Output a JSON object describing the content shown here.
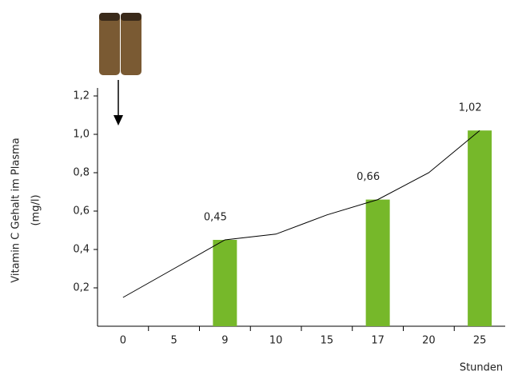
{
  "chart_data": {
    "type": "bar",
    "y_label": [
      "Vitamin C Gehalt im Plasma",
      "(mg/l)"
    ],
    "x_label": "Stunden",
    "categories": [
      "0",
      "5",
      "9",
      "10",
      "15",
      "17",
      "20",
      "25"
    ],
    "ylim": [
      0,
      1.2
    ],
    "yticks": [
      {
        "value": 0.2,
        "label": "0,2"
      },
      {
        "value": 0.4,
        "label": "0,4"
      },
      {
        "value": 0.6,
        "label": "0,6"
      },
      {
        "value": 0.8,
        "label": "0,8"
      },
      {
        "value": 1.0,
        "label": "1,0"
      },
      {
        "value": 1.2,
        "label": "1,2"
      }
    ],
    "series": [
      {
        "type": "bar",
        "color": "#76b82a",
        "values": [
          null,
          null,
          0.45,
          null,
          null,
          0.66,
          null,
          1.02
        ],
        "value_labels": [
          null,
          null,
          "0,45",
          null,
          null,
          "0,66",
          null,
          "1,02"
        ]
      },
      {
        "type": "line",
        "color": "#000000",
        "values": [
          0.15,
          0.3,
          0.45,
          0.48,
          0.58,
          0.66,
          0.8,
          1.02
        ]
      }
    ]
  }
}
